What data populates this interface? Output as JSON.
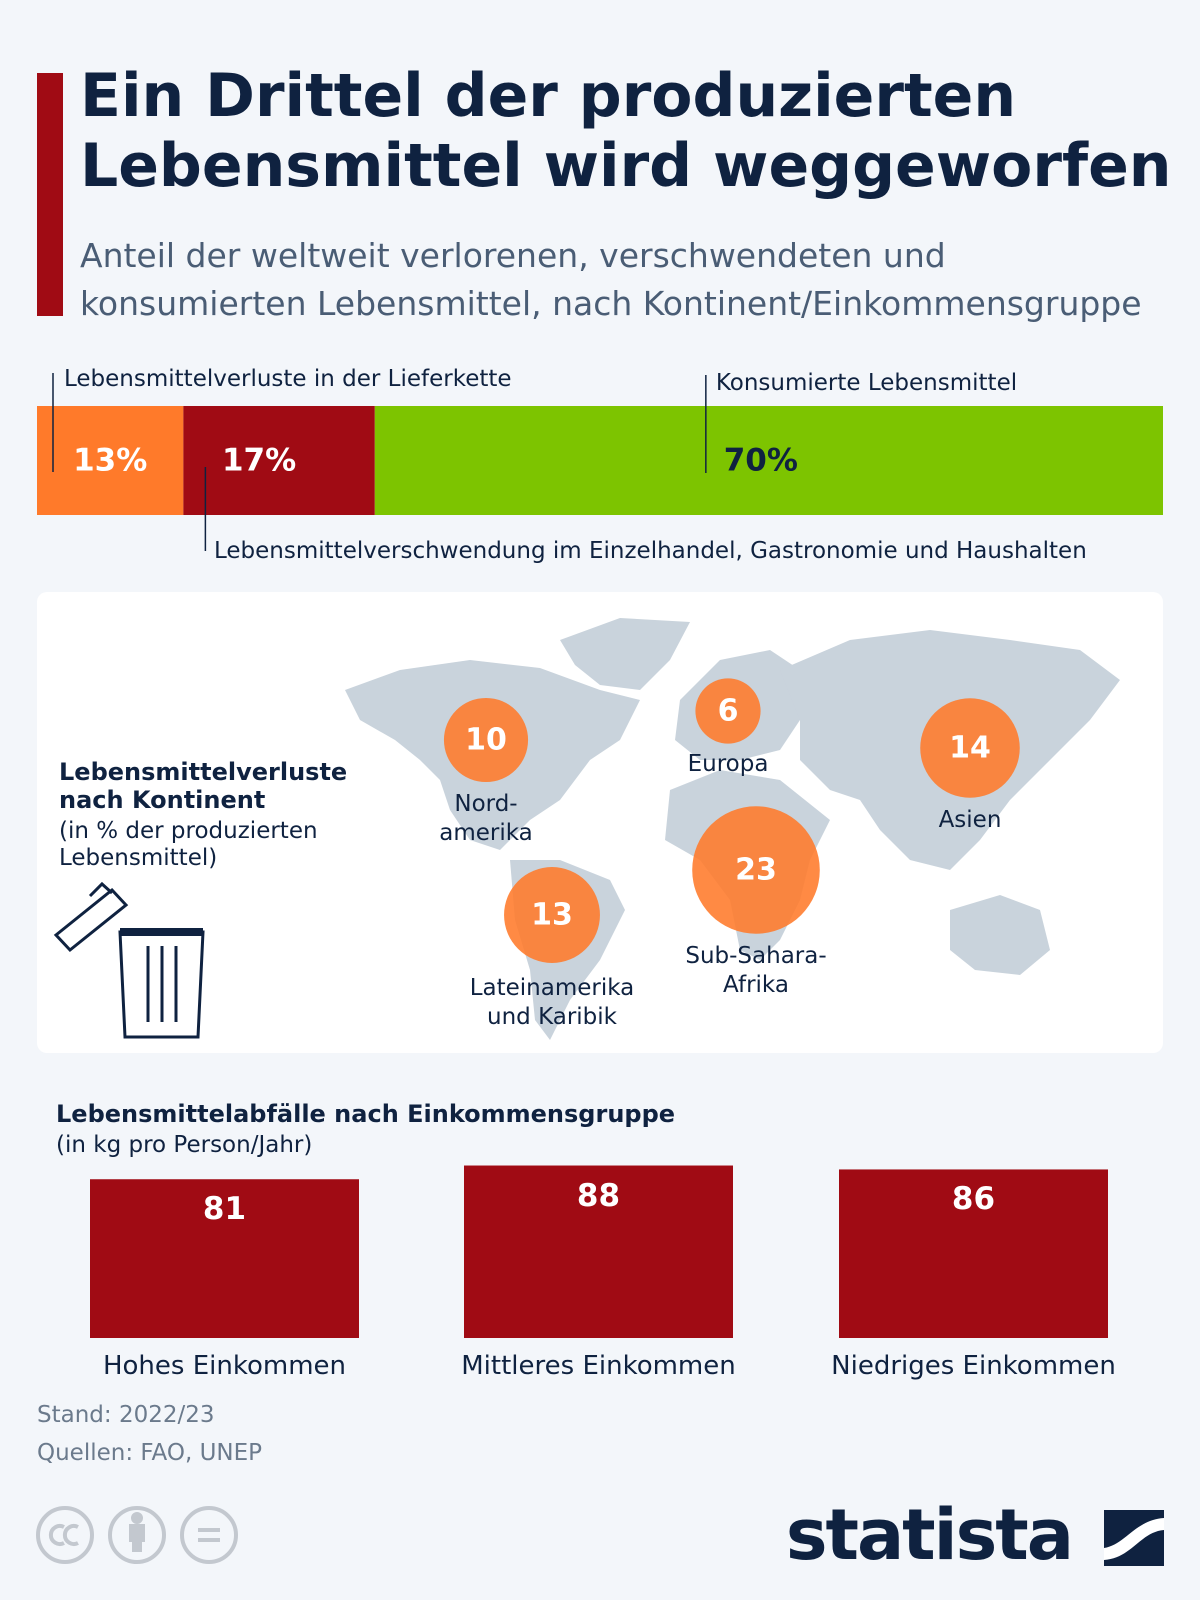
{
  "header": {
    "title": "Ein Drittel der produzierten Lebensmittel wird weggeworfen",
    "subtitle": "Anteil der weltweit verlorenen, verschwendeten und konsumierten Lebensmittel, nach Kontinent/Einkommensgruppe"
  },
  "chart_data": [
    {
      "type": "stacked_bar",
      "xlim": [
        0,
        100
      ],
      "series": [
        {
          "name": "Lebensmittelverluste in der Lieferkette",
          "color": "#ff7a2a",
          "values": [
            13
          ],
          "value_labels": [
            "13%"
          ]
        },
        {
          "name": "Lebensmittelverschwendung im Einzelhandel, Gastronomie und Haushalten",
          "color": "#a00b14",
          "values": [
            17
          ],
          "value_labels": [
            "17%"
          ]
        },
        {
          "name": "Konsumierte Lebensmittel",
          "color": "#7dc400",
          "values": [
            70
          ],
          "value_labels": [
            "70%"
          ]
        }
      ]
    },
    {
      "type": "bubble_map",
      "title": "Lebensmittelverluste nach Kontinent",
      "subtitle": "(in % der produzierten Lebensmittel)",
      "categories": [
        "Nord-\namerika",
        "Europa",
        "Asien",
        "Sub-Sahara-\nAfrika",
        "Lateinamerika\nund Karibik"
      ],
      "values": [
        10,
        6,
        14,
        23,
        13
      ],
      "color": "#ff7a2a"
    },
    {
      "type": "bar",
      "title": "Lebensmittelabfälle nach Einkommensgruppe",
      "subtitle": "(in kg pro Person/Jahr)",
      "categories": [
        "Hohes Einkommen",
        "Mittleres Einkommen",
        "Niedriges Einkommen"
      ],
      "values": [
        81,
        88,
        86
      ],
      "color": "#a00b14"
    }
  ],
  "footer": {
    "note": "Stand: 2022/23",
    "source": "Quellen: FAO, UNEP",
    "brand": "statista"
  }
}
